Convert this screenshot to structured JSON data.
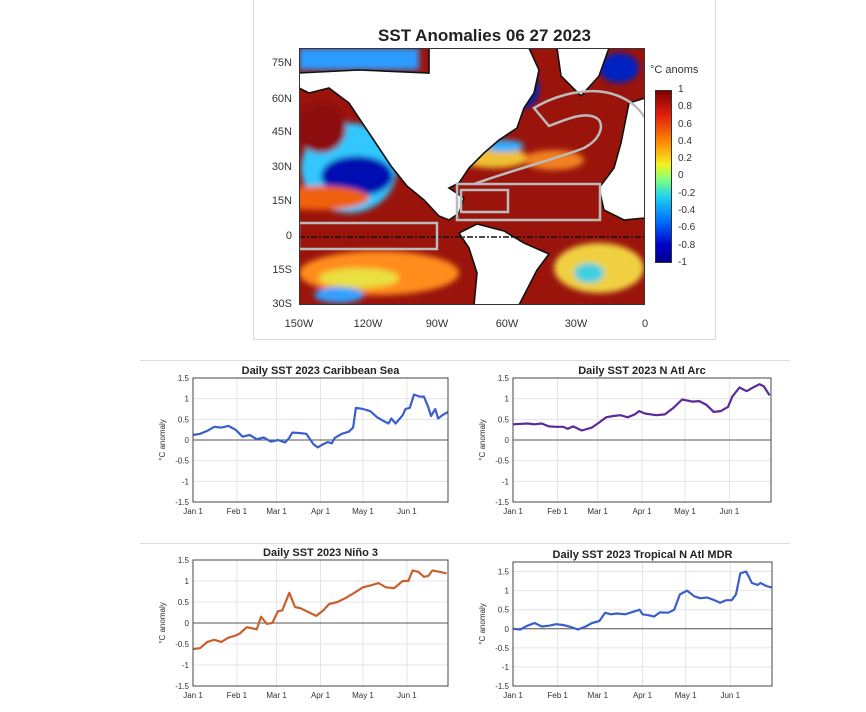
{
  "map": {
    "title": "SST Anomalies  06 27 2023",
    "lat_ticks": [
      "75N",
      "60N",
      "45N",
      "30N",
      "15N",
      "0",
      "15S",
      "30S"
    ],
    "lon_ticks": [
      "150W",
      "120W",
      "90W",
      "60W",
      "30W",
      "0"
    ],
    "colorbar_label": "°C anoms",
    "colorbar_ticks": [
      "1",
      "0.8",
      "0.6",
      "0.4",
      "0.2",
      "0",
      "-0.2",
      "-0.4",
      "-0.6",
      "-0.8",
      "-1"
    ],
    "colorbar_range": [
      -1,
      1
    ]
  },
  "chart_data": [
    {
      "type": "line",
      "title": "Daily SST 2023   Caribbean Sea",
      "ylabel": "°C anomaly",
      "xlabel": "",
      "color": "#3a5fcd",
      "xlim": [
        0,
        180
      ],
      "ylim": [
        -1.5,
        1.5
      ],
      "yticks": [
        -1.5,
        -1,
        -0.5,
        0,
        0.5,
        1,
        1.5
      ],
      "ytick_labels": [
        "-1.5",
        "-1",
        "-0.5",
        "0",
        "0.5",
        "1",
        "1.5"
      ],
      "xticks": [
        0,
        31,
        59,
        90,
        120,
        151
      ],
      "xtick_labels": [
        "Jan 1",
        "Feb 1",
        "Mar 1",
        "Apr 1",
        "May 1",
        "Jun 1"
      ],
      "x": [
        0,
        5,
        10,
        15,
        20,
        25,
        30,
        35,
        40,
        45,
        50,
        55,
        60,
        65,
        68,
        70,
        75,
        80,
        85,
        88,
        92,
        95,
        98,
        100,
        105,
        110,
        113,
        115,
        120,
        125,
        130,
        135,
        138,
        140,
        143,
        148,
        150,
        153,
        156,
        160,
        163,
        166,
        168,
        171,
        173,
        176,
        180
      ],
      "y": [
        0.12,
        0.15,
        0.22,
        0.32,
        0.3,
        0.34,
        0.25,
        0.08,
        0.12,
        0.02,
        0.06,
        -0.04,
        0.0,
        -0.06,
        0.05,
        0.18,
        0.17,
        0.15,
        -0.1,
        -0.18,
        -0.1,
        -0.05,
        -0.08,
        0.05,
        0.15,
        0.2,
        0.3,
        0.78,
        0.75,
        0.7,
        0.55,
        0.45,
        0.4,
        0.52,
        0.4,
        0.6,
        0.75,
        0.78,
        1.1,
        1.05,
        1.05,
        0.8,
        0.58,
        0.75,
        0.52,
        0.6,
        0.68
      ]
    },
    {
      "type": "line",
      "title": "Daily SST 2023   N Atl Arc",
      "ylabel": "°C anomaly",
      "xlabel": "",
      "color": "#5b2a9a",
      "xlim": [
        0,
        180
      ],
      "ylim": [
        -1.5,
        1.5
      ],
      "yticks": [
        -1.5,
        -1,
        -0.5,
        0,
        0.5,
        1,
        1.5
      ],
      "ytick_labels": [
        "-1.5",
        "-1",
        "-0.5",
        "0",
        "0.5",
        "1",
        "1.5"
      ],
      "xticks": [
        0,
        31,
        59,
        90,
        120,
        151
      ],
      "xtick_labels": [
        "Jan 1",
        "Feb 1",
        "Mar 1",
        "Apr 1",
        "May 1",
        "Jun 1"
      ],
      "x": [
        0,
        10,
        15,
        20,
        25,
        30,
        35,
        38,
        42,
        48,
        55,
        60,
        65,
        70,
        75,
        80,
        85,
        88,
        92,
        100,
        106,
        112,
        118,
        125,
        130,
        135,
        140,
        145,
        150,
        153,
        158,
        163,
        168,
        172,
        175,
        179
      ],
      "y": [
        0.38,
        0.4,
        0.38,
        0.4,
        0.33,
        0.32,
        0.32,
        0.27,
        0.33,
        0.23,
        0.3,
        0.42,
        0.55,
        0.58,
        0.6,
        0.55,
        0.62,
        0.7,
        0.64,
        0.6,
        0.62,
        0.78,
        0.98,
        0.93,
        0.94,
        0.85,
        0.68,
        0.7,
        0.8,
        1.05,
        1.27,
        1.18,
        1.28,
        1.35,
        1.3,
        1.08
      ]
    },
    {
      "type": "line",
      "title": "Daily SST 2023   Niño 3",
      "ylabel": "°C anomaly",
      "xlabel": "",
      "color": "#c8602e",
      "xlim": [
        0,
        180
      ],
      "ylim": [
        -1.5,
        1.5
      ],
      "yticks": [
        -1.5,
        -1,
        -0.5,
        0,
        0.5,
        1,
        1.5
      ],
      "ytick_labels": [
        "-1.5",
        "-1",
        "-0.5",
        "0",
        "0.5",
        "1",
        "1.5"
      ],
      "xticks": [
        0,
        31,
        59,
        90,
        120,
        151
      ],
      "xtick_labels": [
        "Jan 1",
        "Feb 1",
        "Mar 1",
        "Apr 1",
        "May 1",
        "Jun 1"
      ],
      "x": [
        0,
        5,
        10,
        15,
        20,
        25,
        30,
        33,
        38,
        45,
        48,
        52,
        56,
        60,
        63,
        68,
        72,
        76,
        82,
        87,
        92,
        96,
        102,
        108,
        113,
        120,
        126,
        131,
        136,
        142,
        148,
        152,
        155,
        159,
        163,
        166,
        169,
        174,
        179
      ],
      "y": [
        -0.62,
        -0.6,
        -0.45,
        -0.4,
        -0.45,
        -0.35,
        -0.3,
        -0.25,
        -0.1,
        -0.15,
        0.15,
        -0.02,
        0.0,
        0.28,
        0.3,
        0.72,
        0.38,
        0.35,
        0.25,
        0.17,
        0.3,
        0.45,
        0.5,
        0.6,
        0.7,
        0.85,
        0.9,
        0.95,
        0.85,
        0.83,
        1.0,
        1.0,
        1.25,
        1.22,
        1.1,
        1.12,
        1.25,
        1.22,
        1.18
      ]
    },
    {
      "type": "line",
      "title": "Daily SST 2023   Tropical N Atl MDR",
      "ylabel": "°C anomaly",
      "xlabel": "",
      "color": "#3a5fcd",
      "xlim": [
        0,
        180
      ],
      "ylim": [
        -1.5,
        1.75
      ],
      "yticks": [
        -1.5,
        -1,
        -0.5,
        0,
        0.5,
        1,
        1.5
      ],
      "ytick_labels": [
        "-1.5",
        "-1",
        "-0.5",
        "0",
        "0.5",
        "1",
        "1.5"
      ],
      "xticks": [
        0,
        31,
        59,
        90,
        120,
        151
      ],
      "xtick_labels": [
        "Jan 1",
        "Feb 1",
        "Mar 1",
        "Apr 1",
        "May 1",
        "Jun 1"
      ],
      "x": [
        0,
        5,
        10,
        15,
        20,
        25,
        30,
        35,
        40,
        45,
        50,
        55,
        60,
        64,
        68,
        72,
        78,
        84,
        88,
        90,
        95,
        98,
        102,
        108,
        112,
        116,
        121,
        126,
        130,
        135,
        140,
        144,
        148,
        152,
        155,
        158,
        162,
        166,
        170,
        172,
        176,
        180
      ],
      "y": [
        0.0,
        -0.02,
        0.08,
        0.15,
        0.06,
        0.08,
        0.12,
        0.1,
        0.05,
        -0.02,
        0.05,
        0.15,
        0.2,
        0.42,
        0.38,
        0.4,
        0.38,
        0.45,
        0.5,
        0.38,
        0.35,
        0.32,
        0.43,
        0.42,
        0.5,
        0.9,
        1.0,
        0.85,
        0.8,
        0.82,
        0.75,
        0.68,
        0.75,
        0.75,
        0.9,
        1.45,
        1.5,
        1.2,
        1.15,
        1.2,
        1.12,
        1.08
      ]
    }
  ]
}
